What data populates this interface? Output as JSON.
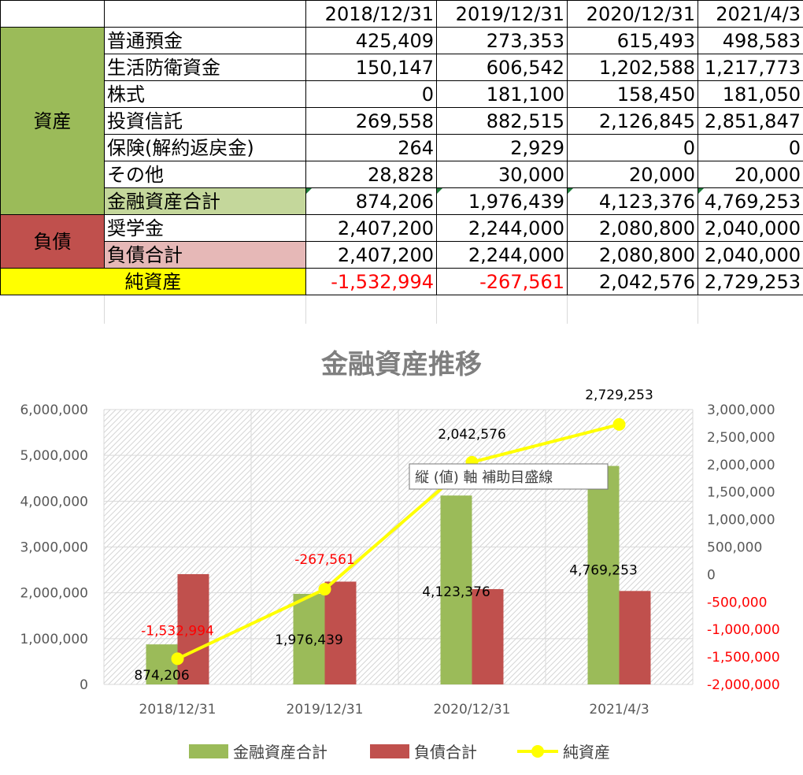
{
  "table": {
    "headers": [
      "",
      "",
      "2018/12/31",
      "2019/12/31",
      "2020/12/31",
      "2021/4/3"
    ],
    "sections": {
      "asset": "資産",
      "liability": "負債"
    },
    "asset_rows": [
      {
        "label": "普通預金",
        "values": [
          "425,409",
          "273,353",
          "615,493",
          "498,583"
        ]
      },
      {
        "label": "生活防衛資金",
        "values": [
          "150,147",
          "606,542",
          "1,202,588",
          "1,217,773"
        ]
      },
      {
        "label": "株式",
        "values": [
          "0",
          "181,100",
          "158,450",
          "181,050"
        ]
      },
      {
        "label": "投資信託",
        "values": [
          "269,558",
          "882,515",
          "2,126,845",
          "2,851,847"
        ]
      },
      {
        "label": "保険(解約返戻金)",
        "values": [
          "264",
          "2,929",
          "0",
          "0"
        ]
      },
      {
        "label": "その他",
        "values": [
          "28,828",
          "30,000",
          "20,000",
          "20,000"
        ]
      },
      {
        "label": "金融資産合計",
        "values": [
          "874,206",
          "1,976,439",
          "4,123,376",
          "4,769,253"
        ]
      }
    ],
    "liability_rows": [
      {
        "label": "奨学金",
        "values": [
          "2,407,200",
          "2,244,000",
          "2,080,800",
          "2,040,000"
        ]
      },
      {
        "label": "負債合計",
        "values": [
          "2,407,200",
          "2,244,000",
          "2,080,800",
          "2,040,000"
        ]
      }
    ],
    "net_row": {
      "label": "純資産",
      "values": [
        "-1,532,994",
        "-267,561",
        "2,042,576",
        "2,729,253"
      ]
    }
  },
  "chart_data": {
    "type": "bar",
    "title": "金融資産推移",
    "categories": [
      "2018/12/31",
      "2019/12/31",
      "2020/12/31",
      "2021/4/3"
    ],
    "series": [
      {
        "name": "金融資産合計",
        "type": "bar",
        "axis": "left",
        "color": "#9bbb59",
        "values": [
          874206,
          1976439,
          4123376,
          4769253
        ]
      },
      {
        "name": "負債合計",
        "type": "bar",
        "axis": "left",
        "color": "#c0504d",
        "values": [
          2407200,
          2244000,
          2080800,
          2040000
        ]
      },
      {
        "name": "純資産",
        "type": "line",
        "axis": "right",
        "color": "#ffff00",
        "values": [
          -1532994,
          -267561,
          2042576,
          2729253
        ]
      }
    ],
    "y_left": {
      "lim": [
        0,
        6000000
      ],
      "ticks": [
        "6,000,000",
        "5,000,000",
        "4,000,000",
        "3,000,000",
        "2,000,000",
        "1,000,000",
        "0"
      ]
    },
    "y_right": {
      "lim": [
        -2000000,
        3000000
      ],
      "ticks": [
        "3,000,000",
        "2,500,000",
        "2,000,000",
        "1,500,000",
        "1,000,000",
        "500,000",
        "0",
        "-500,000",
        "-1,000,000",
        "-1,500,000",
        "-2,000,000"
      ]
    },
    "data_labels": {
      "asset": [
        "874,206",
        "1,976,439",
        "4,123,376",
        "4,769,253"
      ],
      "net": [
        "-1,532,994",
        "-267,561",
        "2,042,576",
        "2,729,253"
      ]
    },
    "tooltip": "縦 (値) 軸 補助目盛線",
    "legend_position": "bottom",
    "grid": true
  }
}
